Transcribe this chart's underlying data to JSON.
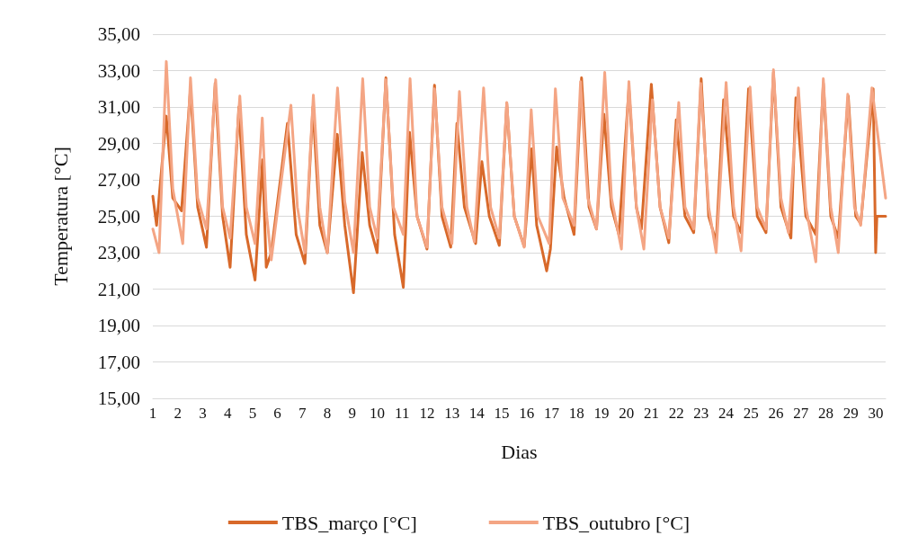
{
  "chart_data": {
    "type": "line",
    "xlabel": "Dias",
    "ylabel": "Temperatura [°C]",
    "xlim": [
      1,
      30.4
    ],
    "xticks": [
      1,
      2,
      3,
      4,
      5,
      6,
      7,
      8,
      9,
      10,
      11,
      12,
      13,
      14,
      15,
      16,
      17,
      18,
      19,
      20,
      21,
      22,
      23,
      24,
      25,
      26,
      27,
      28,
      29,
      30
    ],
    "ylim": [
      15,
      35
    ],
    "yticks": [
      {
        "value": 15,
        "label": "15,00"
      },
      {
        "value": 17,
        "label": "17,00"
      },
      {
        "value": 19,
        "label": "19,00"
      },
      {
        "value": 21,
        "label": "21,00"
      },
      {
        "value": 23,
        "label": "23,00"
      },
      {
        "value": 25,
        "label": "25,00"
      },
      {
        "value": 27,
        "label": "27,00"
      },
      {
        "value": 29,
        "label": "29,00"
      },
      {
        "value": 31,
        "label": "31,00"
      },
      {
        "value": 33,
        "label": "33,00"
      },
      {
        "value": 35,
        "label": "35,00"
      }
    ],
    "grid": "y",
    "legend": "bottom",
    "marker": "none",
    "line_style": "solid",
    "series": [
      {
        "name": "TBS_março [°C]",
        "color": "#d8692a",
        "x": [
          1.0,
          1.15,
          1.54,
          1.8,
          2.15,
          2.51,
          2.8,
          3.15,
          3.5,
          3.8,
          4.1,
          4.45,
          4.75,
          5.1,
          5.4,
          5.55,
          5.75,
          6.4,
          6.75,
          7.1,
          7.42,
          7.7,
          8.0,
          8.4,
          8.7,
          9.05,
          9.4,
          9.7,
          10.0,
          10.35,
          10.7,
          11.05,
          11.3,
          11.6,
          12.0,
          12.3,
          12.6,
          12.95,
          13.2,
          13.5,
          13.95,
          14.2,
          14.5,
          14.9,
          15.2,
          15.5,
          15.9,
          16.2,
          16.4,
          16.8,
          16.95,
          17.2,
          17.5,
          17.9,
          18.2,
          18.5,
          18.8,
          19.1,
          19.4,
          19.7,
          20.1,
          20.4,
          20.6,
          21.0,
          21.35,
          21.7,
          22.0,
          22.35,
          22.7,
          23.0,
          23.3,
          23.6,
          23.9,
          24.3,
          24.6,
          24.9,
          25.25,
          25.6,
          25.9,
          26.2,
          26.6,
          26.8,
          27.2,
          27.6,
          27.9,
          28.2,
          28.5,
          28.9,
          29.2,
          29.4,
          29.9,
          30.0,
          30.05,
          30.4
        ],
        "values": [
          26.1,
          24.5,
          30.5,
          26.0,
          25.3,
          32.0,
          25.5,
          23.3,
          32.3,
          25.0,
          22.2,
          31.0,
          24.0,
          21.5,
          28.1,
          22.2,
          23.0,
          30.1,
          24.0,
          22.4,
          31.0,
          24.5,
          23.0,
          29.5,
          24.5,
          20.8,
          28.5,
          24.5,
          23.0,
          32.6,
          24.0,
          21.1,
          29.6,
          25.0,
          23.2,
          32.2,
          25.0,
          23.3,
          30.1,
          25.5,
          23.5,
          28.0,
          25.0,
          23.4,
          31.2,
          25.0,
          23.35,
          28.7,
          24.5,
          22.0,
          23.2,
          28.8,
          26.0,
          24.0,
          32.6,
          25.5,
          24.3,
          30.6,
          25.5,
          24.0,
          32.0,
          25.5,
          24.3,
          32.25,
          25.5,
          23.55,
          30.3,
          25.0,
          24.1,
          32.55,
          25.0,
          23.6,
          31.4,
          25.0,
          24.1,
          32.0,
          25.0,
          24.1,
          32.9,
          25.5,
          23.8,
          31.5,
          25.0,
          24.0,
          32.3,
          25.0,
          23.8,
          31.6,
          25.0,
          24.6,
          32.0,
          23.0,
          25.0,
          25.0
        ]
      },
      {
        "name": "TBS_outubro [°C]",
        "color": "#f4a584",
        "x": [
          1.0,
          1.25,
          1.54,
          1.8,
          2.2,
          2.51,
          2.8,
          3.15,
          3.52,
          3.8,
          4.1,
          4.49,
          4.75,
          5.1,
          5.39,
          5.55,
          5.75,
          6.54,
          6.8,
          7.1,
          7.44,
          7.7,
          8.0,
          8.41,
          8.7,
          9.05,
          9.42,
          9.7,
          10.0,
          10.35,
          10.65,
          11.05,
          11.32,
          11.6,
          12.0,
          12.3,
          12.6,
          13.0,
          13.3,
          13.6,
          13.9,
          14.27,
          14.55,
          14.9,
          15.2,
          15.5,
          15.9,
          16.18,
          16.45,
          16.9,
          17.15,
          17.45,
          17.9,
          18.16,
          18.45,
          18.8,
          19.13,
          19.4,
          19.8,
          20.1,
          20.4,
          20.7,
          21.04,
          21.35,
          21.7,
          22.1,
          22.35,
          22.7,
          22.98,
          23.3,
          23.6,
          24.0,
          24.3,
          24.6,
          24.96,
          25.25,
          25.6,
          25.9,
          26.2,
          26.5,
          26.9,
          27.2,
          27.6,
          27.9,
          28.2,
          28.5,
          28.88,
          29.15,
          29.4,
          29.85,
          30.4
        ],
        "values": [
          24.3,
          23.0,
          33.5,
          26.5,
          23.5,
          32.6,
          26.0,
          24.3,
          32.5,
          25.5,
          23.8,
          31.6,
          25.5,
          23.5,
          30.4,
          25.3,
          22.6,
          31.1,
          25.5,
          23.0,
          31.65,
          25.5,
          23.0,
          32.05,
          25.8,
          23.0,
          32.55,
          25.5,
          23.8,
          32.5,
          25.5,
          24.0,
          32.55,
          25.0,
          23.3,
          32.0,
          25.5,
          23.5,
          31.85,
          25.5,
          23.6,
          32.05,
          25.5,
          23.8,
          31.25,
          25.0,
          23.3,
          30.85,
          25.0,
          23.5,
          32.0,
          26.0,
          24.5,
          32.4,
          26.0,
          24.3,
          32.9,
          26.0,
          23.2,
          32.4,
          25.5,
          23.2,
          31.4,
          25.5,
          23.8,
          31.25,
          25.5,
          24.3,
          32.3,
          25.5,
          23.0,
          32.35,
          25.5,
          23.1,
          32.1,
          25.5,
          24.3,
          33.05,
          26.0,
          24.1,
          32.05,
          25.5,
          22.5,
          32.55,
          25.5,
          23.0,
          31.7,
          25.5,
          24.5,
          32.05,
          26.0
        ]
      }
    ]
  }
}
